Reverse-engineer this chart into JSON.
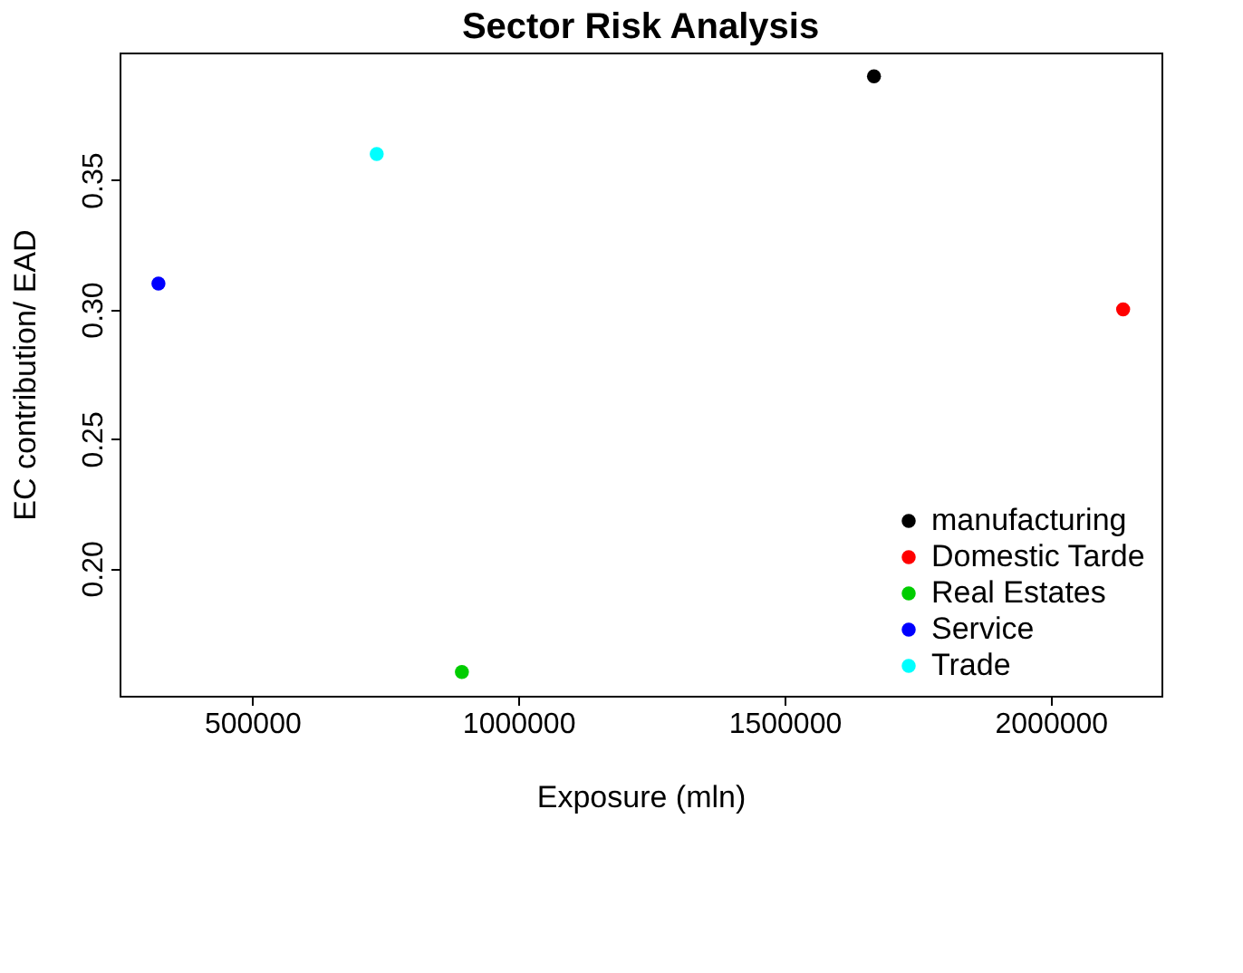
{
  "chart_data": {
    "type": "scatter",
    "title": "Sector Risk Analysis",
    "xlabel": "Exposure (mln)",
    "ylabel": "EC contribution/ EAD",
    "series": [
      {
        "name": "manufacturing",
        "color": "#000000",
        "x": [
          1668000
        ],
        "values": [
          0.39
        ]
      },
      {
        "name": "Domestic Tarde",
        "color": "#ff0000",
        "x": [
          2136000
        ],
        "values": [
          0.3
        ]
      },
      {
        "name": "Real Estates",
        "color": "#00cd00",
        "x": [
          894000
        ],
        "values": [
          0.16
        ]
      },
      {
        "name": "Service",
        "color": "#0000ff",
        "x": [
          324000
        ],
        "values": [
          0.31
        ]
      },
      {
        "name": "Trade",
        "color": "#00ffff",
        "x": [
          734000
        ],
        "values": [
          0.36
        ]
      }
    ],
    "xlim": [
      251000,
      2208000
    ],
    "ylim": [
      0.1508,
      0.3992
    ],
    "xticks": [
      500000,
      1000000,
      1500000,
      2000000
    ],
    "yticks": [
      {
        "value": 0.2,
        "label": "0.20"
      },
      0.25,
      {
        "value": 0.3,
        "label": "0.30"
      },
      0.35
    ],
    "grid": false,
    "legend": "bottom right",
    "marker": "circle"
  }
}
